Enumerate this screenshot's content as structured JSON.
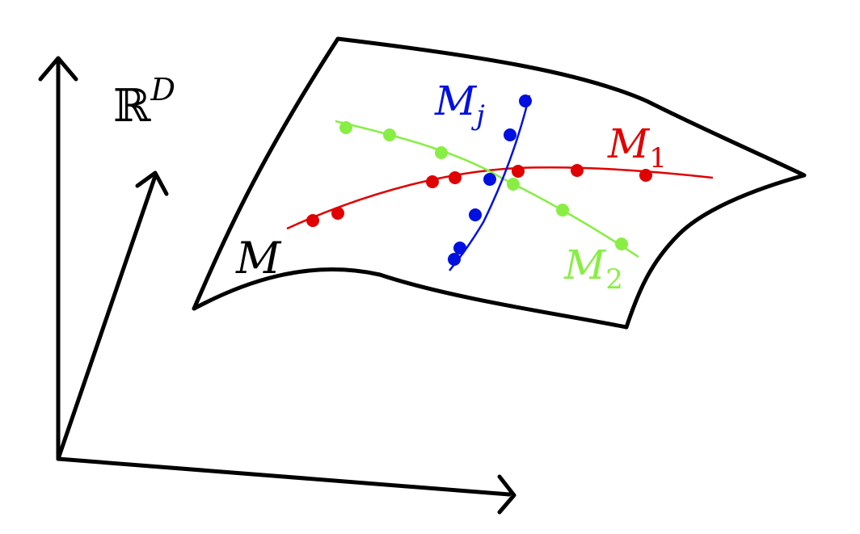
{
  "space": {
    "symbol": "ℝ",
    "superscript": "D"
  },
  "manifold": {
    "symbol": "M"
  },
  "curves": [
    {
      "id": "m1",
      "symbol": "M",
      "subscript": "1",
      "color": "#e00000"
    },
    {
      "id": "m2",
      "symbol": "M",
      "subscript": "2",
      "color": "#88ee44"
    },
    {
      "id": "mj",
      "symbol": "M",
      "subscript": "j",
      "color": "#0010e0"
    }
  ],
  "colors": {
    "axis": "#000000",
    "surface": "#000000",
    "background": "#ffffff"
  }
}
